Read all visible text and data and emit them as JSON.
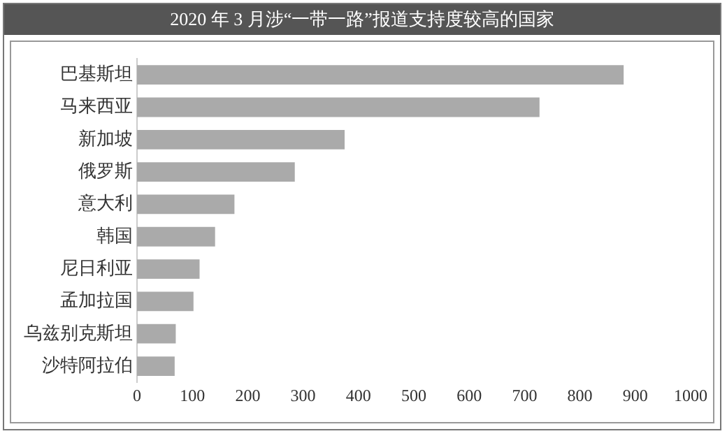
{
  "chart_data": {
    "type": "bar",
    "orientation": "horizontal",
    "title": "2020 年 3 月涉“一带一路”报道支持度较高的国家",
    "categories": [
      "巴基斯坦",
      "马来西亚",
      "新加坡",
      "俄罗斯",
      "意大利",
      "韩国",
      "尼日利亚",
      "孟加拉国",
      "乌兹别克斯坦",
      "沙特阿拉伯"
    ],
    "values": [
      879,
      727,
      375,
      285,
      176,
      141,
      113,
      102,
      70,
      68
    ],
    "color": "#aaaaaa",
    "xlim": [
      0,
      1000
    ],
    "xticks": [
      0,
      100,
      200,
      300,
      400,
      500,
      600,
      700,
      800,
      900,
      1000
    ],
    "grid": false,
    "legend": false
  }
}
